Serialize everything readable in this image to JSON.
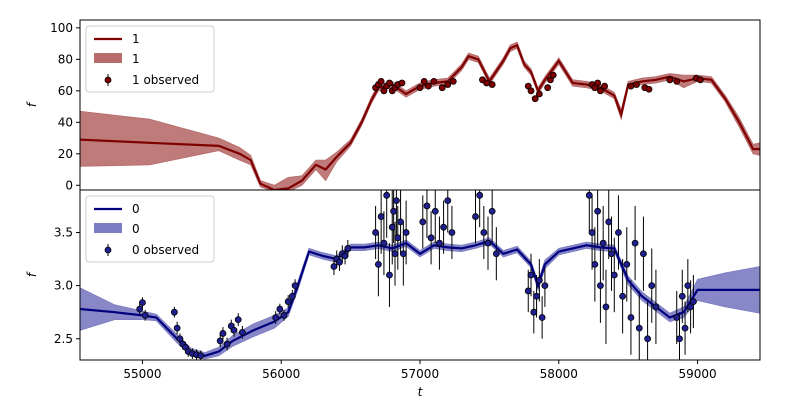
{
  "chart_data": [
    {
      "type": "line",
      "panel": "top",
      "ylabel": "f",
      "xlabel": "",
      "xlim": [
        54550,
        59450
      ],
      "ylim": [
        -3,
        105
      ],
      "yticks": [
        0,
        20,
        40,
        60,
        80,
        100
      ],
      "colors": {
        "line": "#7f0000",
        "band": "#b86b6b",
        "points": "#7f0000"
      },
      "legend": {
        "position": "top-left",
        "entries": [
          {
            "kind": "line",
            "label": "1"
          },
          {
            "kind": "band",
            "label": "1"
          },
          {
            "kind": "errorbar",
            "label": "1 observed"
          }
        ]
      },
      "model": {
        "x": [
          54550,
          55050,
          55550,
          55700,
          55780,
          55850,
          55950,
          56050,
          56150,
          56250,
          56320,
          56400,
          56500,
          56580,
          56650,
          56700,
          56800,
          56900,
          57000,
          57100,
          57200,
          57300,
          57350,
          57420,
          57500,
          57600,
          57650,
          57700,
          57750,
          57800,
          57850,
          57900,
          58000,
          58100,
          58200,
          58300,
          58400,
          58450,
          58500,
          58600,
          58700,
          58800,
          58900,
          59000,
          59100,
          59200,
          59300,
          59400,
          59450
        ],
        "y": [
          29,
          27,
          25,
          20,
          16,
          1,
          -3,
          -2,
          3,
          13,
          10,
          18,
          27,
          40,
          54,
          62,
          64,
          58,
          63,
          65,
          66,
          75,
          82,
          80,
          66,
          79,
          87,
          89,
          77,
          72,
          60,
          67,
          79,
          65,
          64,
          62,
          57,
          45,
          64,
          66,
          67,
          69,
          66,
          68,
          67,
          55,
          40,
          23,
          23
        ],
        "band_upper": [
          47,
          42,
          30,
          24,
          19,
          3,
          0,
          5,
          6,
          16,
          16,
          21,
          29,
          42,
          56,
          64,
          66,
          60,
          65,
          67,
          68,
          77,
          84,
          82,
          68,
          81,
          89,
          91,
          79,
          74,
          62,
          69,
          81,
          67,
          66,
          64,
          59,
          48,
          66,
          68,
          69,
          71,
          70,
          70,
          69,
          57,
          43,
          26,
          27
        ],
        "band_lower": [
          12,
          13,
          22,
          16,
          13,
          -1,
          -4,
          -4,
          0,
          10,
          3,
          15,
          25,
          38,
          52,
          60,
          62,
          56,
          61,
          63,
          64,
          73,
          80,
          78,
          64,
          77,
          85,
          87,
          75,
          70,
          58,
          65,
          77,
          63,
          62,
          60,
          55,
          42,
          62,
          64,
          65,
          67,
          62,
          66,
          65,
          53,
          37,
          20,
          19
        ]
      },
      "observed": {
        "x": [
          56680,
          56700,
          56720,
          56740,
          56760,
          56780,
          56800,
          56820,
          56840,
          56870,
          57000,
          57030,
          57060,
          57100,
          57160,
          57200,
          57240,
          57450,
          57480,
          57520,
          57780,
          57800,
          57830,
          57860,
          57920,
          57940,
          57960,
          58240,
          58260,
          58280,
          58300,
          58330,
          58520,
          58560,
          58620,
          58650,
          58800,
          58850,
          58990,
          59020
        ],
        "y": [
          62,
          64,
          66,
          60,
          63,
          65,
          60,
          62,
          64,
          65,
          62,
          66,
          63,
          66,
          62,
          64,
          66,
          67,
          65,
          64,
          63,
          60,
          55,
          58,
          62,
          67,
          70,
          64,
          62,
          65,
          60,
          63,
          63,
          64,
          62,
          61,
          67,
          66,
          68,
          67
        ]
      }
    },
    {
      "type": "line",
      "panel": "bottom",
      "ylabel": "f",
      "xlabel": "t",
      "xlim": [
        54550,
        59450
      ],
      "ylim": [
        2.3,
        3.9
      ],
      "yticks": [
        2.5,
        3.0,
        3.5
      ],
      "xticks": [
        55000,
        56000,
        57000,
        58000,
        59000
      ],
      "colors": {
        "line": "#00007f",
        "band": "#7b7bc2",
        "points": "#1f1f8f"
      },
      "legend": {
        "position": "top-left",
        "entries": [
          {
            "kind": "line",
            "label": "0"
          },
          {
            "kind": "band",
            "label": "0"
          },
          {
            "kind": "errorbar",
            "label": "0 observed"
          }
        ]
      },
      "model": {
        "x": [
          54550,
          54800,
          55000,
          55100,
          55250,
          55350,
          55450,
          55550,
          55650,
          55800,
          55950,
          56050,
          56120,
          56200,
          56300,
          56400,
          56500,
          56600,
          56700,
          56800,
          56900,
          57000,
          57100,
          57200,
          57300,
          57400,
          57500,
          57600,
          57700,
          57800,
          57850,
          57900,
          58000,
          58100,
          58200,
          58300,
          58400,
          58500,
          58600,
          58700,
          58800,
          58900,
          59000,
          59200,
          59450
        ],
        "y": [
          2.78,
          2.75,
          2.72,
          2.7,
          2.5,
          2.38,
          2.34,
          2.38,
          2.48,
          2.58,
          2.66,
          2.75,
          3.0,
          3.32,
          3.28,
          3.25,
          3.36,
          3.36,
          3.38,
          3.35,
          3.4,
          3.3,
          3.38,
          3.36,
          3.35,
          3.38,
          3.42,
          3.3,
          3.34,
          3.2,
          3.0,
          3.2,
          3.32,
          3.35,
          3.38,
          3.36,
          3.35,
          3.05,
          2.9,
          2.8,
          2.7,
          2.75,
          2.96,
          2.96,
          2.96
        ],
        "band_upper": [
          2.98,
          2.82,
          2.76,
          2.73,
          2.54,
          2.41,
          2.37,
          2.42,
          2.53,
          2.64,
          2.72,
          2.79,
          3.04,
          3.35,
          3.31,
          3.28,
          3.39,
          3.39,
          3.41,
          3.38,
          3.43,
          3.33,
          3.41,
          3.39,
          3.38,
          3.41,
          3.45,
          3.33,
          3.37,
          3.23,
          3.04,
          3.24,
          3.35,
          3.38,
          3.41,
          3.39,
          3.38,
          3.09,
          2.94,
          2.84,
          2.74,
          2.8,
          3.06,
          3.12,
          3.18
        ],
        "band_lower": [
          2.58,
          2.68,
          2.68,
          2.67,
          2.46,
          2.35,
          2.31,
          2.34,
          2.43,
          2.52,
          2.6,
          2.71,
          2.96,
          3.29,
          3.25,
          3.22,
          3.33,
          3.33,
          3.35,
          3.32,
          3.37,
          3.27,
          3.35,
          3.33,
          3.32,
          3.35,
          3.39,
          3.27,
          3.31,
          3.17,
          2.96,
          3.16,
          3.29,
          3.32,
          3.35,
          3.33,
          3.32,
          3.01,
          2.86,
          2.76,
          2.66,
          2.7,
          2.86,
          2.8,
          2.74
        ]
      },
      "observed": {
        "x": [
          54980,
          55000,
          55020,
          55230,
          55250,
          55270,
          55290,
          55310,
          55330,
          55360,
          55390,
          55420,
          55560,
          55580,
          55610,
          55640,
          55660,
          55690,
          55720,
          55960,
          55990,
          56020,
          56050,
          56080,
          56100,
          56380,
          56400,
          56420,
          56440,
          56460,
          56480,
          56680,
          56700,
          56720,
          56740,
          56760,
          56780,
          56800,
          56810,
          56820,
          56830,
          56840,
          56860,
          56880,
          56900,
          57020,
          57050,
          57080,
          57110,
          57140,
          57170,
          57200,
          57230,
          57400,
          57430,
          57460,
          57490,
          57520,
          57550,
          57780,
          57800,
          57820,
          57840,
          57860,
          57880,
          57900,
          58220,
          58240,
          58260,
          58280,
          58300,
          58320,
          58340,
          58360,
          58380,
          58400,
          58430,
          58460,
          58490,
          58520,
          58550,
          58580,
          58610,
          58640,
          58670,
          58700,
          58850,
          58870,
          58890,
          58910,
          58930,
          58950,
          58970
        ],
        "y": [
          2.78,
          2.84,
          2.72,
          2.75,
          2.6,
          2.5,
          2.45,
          2.42,
          2.38,
          2.36,
          2.35,
          2.34,
          2.48,
          2.55,
          2.45,
          2.62,
          2.58,
          2.68,
          2.56,
          2.7,
          2.78,
          2.72,
          2.85,
          2.9,
          3.0,
          3.18,
          3.25,
          3.22,
          3.3,
          3.28,
          3.35,
          3.5,
          3.2,
          3.65,
          3.4,
          3.85,
          3.1,
          3.55,
          3.7,
          3.3,
          3.8,
          3.45,
          3.6,
          3.3,
          3.5,
          3.6,
          3.75,
          3.45,
          3.7,
          3.4,
          3.55,
          3.8,
          3.5,
          3.65,
          3.85,
          3.5,
          3.4,
          3.7,
          3.3,
          2.95,
          3.1,
          2.75,
          2.9,
          3.05,
          2.7,
          3.0,
          3.85,
          3.5,
          3.2,
          3.7,
          3.0,
          3.4,
          2.8,
          3.6,
          3.3,
          3.1,
          3.5,
          2.9,
          3.2,
          2.7,
          3.4,
          2.6,
          3.3,
          2.5,
          3.0,
          2.8,
          2.7,
          2.5,
          2.9,
          2.6,
          3.0,
          2.8,
          2.85
        ],
        "yerr": [
          0.06,
          0.05,
          0.05,
          0.05,
          0.06,
          0.05,
          0.05,
          0.05,
          0.05,
          0.05,
          0.05,
          0.05,
          0.06,
          0.06,
          0.06,
          0.06,
          0.06,
          0.06,
          0.06,
          0.06,
          0.05,
          0.05,
          0.06,
          0.06,
          0.06,
          0.08,
          0.08,
          0.08,
          0.08,
          0.08,
          0.08,
          0.25,
          0.3,
          0.35,
          0.3,
          0.4,
          0.3,
          0.35,
          0.3,
          0.3,
          0.35,
          0.3,
          0.3,
          0.3,
          0.3,
          0.25,
          0.3,
          0.25,
          0.3,
          0.25,
          0.25,
          0.3,
          0.25,
          0.25,
          0.3,
          0.25,
          0.25,
          0.3,
          0.25,
          0.2,
          0.2,
          0.2,
          0.2,
          0.2,
          0.2,
          0.2,
          0.35,
          0.35,
          0.35,
          0.35,
          0.35,
          0.35,
          0.35,
          0.35,
          0.35,
          0.35,
          0.35,
          0.35,
          0.35,
          0.35,
          0.35,
          0.35,
          0.35,
          0.35,
          0.35,
          0.35,
          0.25,
          0.25,
          0.25,
          0.25,
          0.25,
          0.25,
          0.25
        ]
      }
    }
  ]
}
